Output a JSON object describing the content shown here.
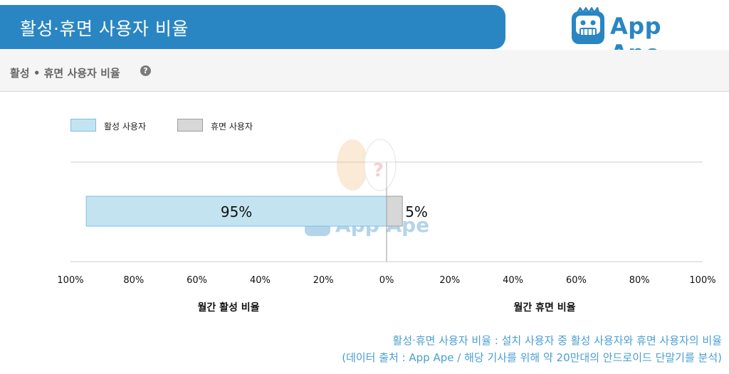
{
  "header": {
    "title": "활성·휴면 사용자 비율"
  },
  "logo": {
    "text": "App Ape"
  },
  "section": {
    "title": "활성 • 휴면 사용자 비율",
    "help_icon": "question-circle-icon"
  },
  "legend": [
    {
      "label": "활성 사용자",
      "color": "#c4e3f1",
      "border": "#7cc0e0"
    },
    {
      "label": "휴면 사용자",
      "color": "#d7d7d7",
      "border": "#9e9e9e"
    }
  ],
  "chart_data": {
    "type": "bar",
    "orientation": "horizontal-diverging",
    "series": [
      {
        "name": "활성 사용자",
        "value": 95,
        "value_label": "95%",
        "color": "#c4e3f1",
        "direction": "left"
      },
      {
        "name": "휴면 사용자",
        "value": 5,
        "value_label": "5%",
        "color": "#d7d7d7",
        "direction": "right"
      }
    ],
    "left_axis": {
      "label": "월간 활성 비율",
      "ticks": [
        "100%",
        "80%",
        "60%",
        "40%",
        "20%"
      ],
      "range": [
        0,
        100
      ]
    },
    "center_tick": "0%",
    "right_axis": {
      "label": "월간 휴면 비율",
      "ticks": [
        "20%",
        "40%",
        "60%",
        "80%",
        "100%"
      ],
      "range": [
        0,
        100
      ]
    },
    "grid": false,
    "legend_position": "top-left"
  },
  "footnotes": [
    "활성·휴면 사용자 비율 : 설치 사용자 중 활성 사용자와 휴면 사용자의 비율",
    "(데이터 출처 : App Ape / 해당 기사를 위해 약 20만대의 안드로이드 단말기를 분석)"
  ]
}
